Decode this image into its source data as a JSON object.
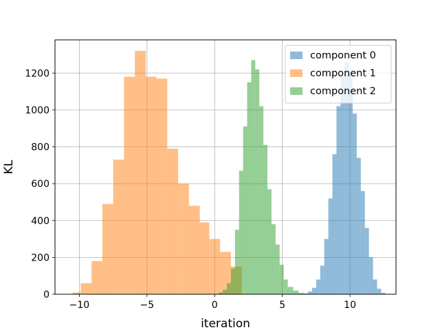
{
  "chart_data": {
    "type": "bar",
    "title": "",
    "xlabel": "iteration",
    "ylabel": "KL",
    "xlim": [
      -11.8,
      13.4
    ],
    "ylim": [
      0,
      1380
    ],
    "xticks": [
      -10,
      -5,
      0,
      5,
      10
    ],
    "xtick_labels": [
      "−10",
      "−5",
      "0",
      "5",
      "10"
    ],
    "yticks": [
      0,
      200,
      400,
      600,
      800,
      1000,
      1200
    ],
    "ytick_labels": [
      "0",
      "200",
      "400",
      "600",
      "800",
      "1000",
      "1200"
    ],
    "grid": true,
    "legend_position": "top-right",
    "series": [
      {
        "name": "component 0",
        "color": "#1f77b4",
        "alpha": 0.5,
        "bin_edges": [
          6.6,
          6.9,
          7.2,
          7.5,
          7.8,
          8.1,
          8.4,
          8.7,
          9.0,
          9.3,
          9.6,
          9.9,
          10.2,
          10.5,
          10.8,
          11.1,
          11.4,
          11.7,
          12.0,
          12.3,
          12.6
        ],
        "counts": [
          5,
          15,
          35,
          80,
          155,
          300,
          520,
          760,
          1020,
          1180,
          1260,
          1200,
          980,
          740,
          560,
          360,
          200,
          80,
          30,
          8
        ]
      },
      {
        "name": "component 1",
        "color": "#ff7f0e",
        "alpha": 0.5,
        "bin_edges": [
          -10.5,
          -9.9,
          -9.1,
          -8.3,
          -7.5,
          -6.7,
          -5.9,
          -5.1,
          -4.3,
          -3.5,
          -2.7,
          -1.9,
          -1.1,
          -0.4,
          0.4,
          1.2,
          2.0
        ],
        "counts": [
          10,
          60,
          180,
          490,
          730,
          1180,
          1320,
          1180,
          1170,
          790,
          600,
          480,
          390,
          300,
          230,
          150
        ]
      },
      {
        "name": "component 2",
        "color": "#2ca02c",
        "alpha": 0.5,
        "bin_edges": [
          0.3,
          0.6,
          0.9,
          1.2,
          1.5,
          1.8,
          2.1,
          2.4,
          2.7,
          3.0,
          3.3,
          3.6,
          3.9,
          4.2,
          4.5,
          4.8,
          5.1,
          5.4,
          5.8,
          6.2,
          6.6
        ],
        "counts": [
          10,
          25,
          60,
          140,
          350,
          670,
          910,
          1150,
          1270,
          1220,
          1020,
          810,
          570,
          380,
          270,
          160,
          80,
          40,
          20,
          8
        ]
      }
    ]
  }
}
